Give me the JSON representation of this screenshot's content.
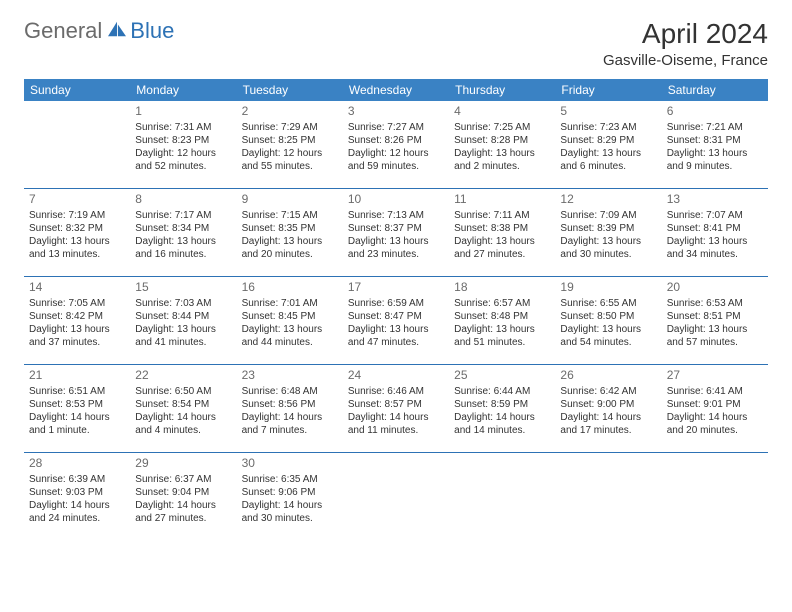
{
  "logo": {
    "general": "General",
    "blue": "Blue"
  },
  "title": "April 2024",
  "location": "Gasville-Oiseme, France",
  "colors": {
    "header_bg": "#3a82c4",
    "header_text": "#ffffff",
    "rule": "#2d72b5",
    "daynum": "#6b6b6b",
    "body_text": "#333333",
    "background": "#ffffff",
    "logo_gray": "#6b6b6b",
    "logo_blue": "#2d72b5"
  },
  "day_names": [
    "Sunday",
    "Monday",
    "Tuesday",
    "Wednesday",
    "Thursday",
    "Friday",
    "Saturday"
  ],
  "weeks": [
    [
      {},
      {
        "num": "1",
        "sunrise": "Sunrise: 7:31 AM",
        "sunset": "Sunset: 8:23 PM",
        "daylight": "Daylight: 12 hours and 52 minutes."
      },
      {
        "num": "2",
        "sunrise": "Sunrise: 7:29 AM",
        "sunset": "Sunset: 8:25 PM",
        "daylight": "Daylight: 12 hours and 55 minutes."
      },
      {
        "num": "3",
        "sunrise": "Sunrise: 7:27 AM",
        "sunset": "Sunset: 8:26 PM",
        "daylight": "Daylight: 12 hours and 59 minutes."
      },
      {
        "num": "4",
        "sunrise": "Sunrise: 7:25 AM",
        "sunset": "Sunset: 8:28 PM",
        "daylight": "Daylight: 13 hours and 2 minutes."
      },
      {
        "num": "5",
        "sunrise": "Sunrise: 7:23 AM",
        "sunset": "Sunset: 8:29 PM",
        "daylight": "Daylight: 13 hours and 6 minutes."
      },
      {
        "num": "6",
        "sunrise": "Sunrise: 7:21 AM",
        "sunset": "Sunset: 8:31 PM",
        "daylight": "Daylight: 13 hours and 9 minutes."
      }
    ],
    [
      {
        "num": "7",
        "sunrise": "Sunrise: 7:19 AM",
        "sunset": "Sunset: 8:32 PM",
        "daylight": "Daylight: 13 hours and 13 minutes."
      },
      {
        "num": "8",
        "sunrise": "Sunrise: 7:17 AM",
        "sunset": "Sunset: 8:34 PM",
        "daylight": "Daylight: 13 hours and 16 minutes."
      },
      {
        "num": "9",
        "sunrise": "Sunrise: 7:15 AM",
        "sunset": "Sunset: 8:35 PM",
        "daylight": "Daylight: 13 hours and 20 minutes."
      },
      {
        "num": "10",
        "sunrise": "Sunrise: 7:13 AM",
        "sunset": "Sunset: 8:37 PM",
        "daylight": "Daylight: 13 hours and 23 minutes."
      },
      {
        "num": "11",
        "sunrise": "Sunrise: 7:11 AM",
        "sunset": "Sunset: 8:38 PM",
        "daylight": "Daylight: 13 hours and 27 minutes."
      },
      {
        "num": "12",
        "sunrise": "Sunrise: 7:09 AM",
        "sunset": "Sunset: 8:39 PM",
        "daylight": "Daylight: 13 hours and 30 minutes."
      },
      {
        "num": "13",
        "sunrise": "Sunrise: 7:07 AM",
        "sunset": "Sunset: 8:41 PM",
        "daylight": "Daylight: 13 hours and 34 minutes."
      }
    ],
    [
      {
        "num": "14",
        "sunrise": "Sunrise: 7:05 AM",
        "sunset": "Sunset: 8:42 PM",
        "daylight": "Daylight: 13 hours and 37 minutes."
      },
      {
        "num": "15",
        "sunrise": "Sunrise: 7:03 AM",
        "sunset": "Sunset: 8:44 PM",
        "daylight": "Daylight: 13 hours and 41 minutes."
      },
      {
        "num": "16",
        "sunrise": "Sunrise: 7:01 AM",
        "sunset": "Sunset: 8:45 PM",
        "daylight": "Daylight: 13 hours and 44 minutes."
      },
      {
        "num": "17",
        "sunrise": "Sunrise: 6:59 AM",
        "sunset": "Sunset: 8:47 PM",
        "daylight": "Daylight: 13 hours and 47 minutes."
      },
      {
        "num": "18",
        "sunrise": "Sunrise: 6:57 AM",
        "sunset": "Sunset: 8:48 PM",
        "daylight": "Daylight: 13 hours and 51 minutes."
      },
      {
        "num": "19",
        "sunrise": "Sunrise: 6:55 AM",
        "sunset": "Sunset: 8:50 PM",
        "daylight": "Daylight: 13 hours and 54 minutes."
      },
      {
        "num": "20",
        "sunrise": "Sunrise: 6:53 AM",
        "sunset": "Sunset: 8:51 PM",
        "daylight": "Daylight: 13 hours and 57 minutes."
      }
    ],
    [
      {
        "num": "21",
        "sunrise": "Sunrise: 6:51 AM",
        "sunset": "Sunset: 8:53 PM",
        "daylight": "Daylight: 14 hours and 1 minute."
      },
      {
        "num": "22",
        "sunrise": "Sunrise: 6:50 AM",
        "sunset": "Sunset: 8:54 PM",
        "daylight": "Daylight: 14 hours and 4 minutes."
      },
      {
        "num": "23",
        "sunrise": "Sunrise: 6:48 AM",
        "sunset": "Sunset: 8:56 PM",
        "daylight": "Daylight: 14 hours and 7 minutes."
      },
      {
        "num": "24",
        "sunrise": "Sunrise: 6:46 AM",
        "sunset": "Sunset: 8:57 PM",
        "daylight": "Daylight: 14 hours and 11 minutes."
      },
      {
        "num": "25",
        "sunrise": "Sunrise: 6:44 AM",
        "sunset": "Sunset: 8:59 PM",
        "daylight": "Daylight: 14 hours and 14 minutes."
      },
      {
        "num": "26",
        "sunrise": "Sunrise: 6:42 AM",
        "sunset": "Sunset: 9:00 PM",
        "daylight": "Daylight: 14 hours and 17 minutes."
      },
      {
        "num": "27",
        "sunrise": "Sunrise: 6:41 AM",
        "sunset": "Sunset: 9:01 PM",
        "daylight": "Daylight: 14 hours and 20 minutes."
      }
    ],
    [
      {
        "num": "28",
        "sunrise": "Sunrise: 6:39 AM",
        "sunset": "Sunset: 9:03 PM",
        "daylight": "Daylight: 14 hours and 24 minutes."
      },
      {
        "num": "29",
        "sunrise": "Sunrise: 6:37 AM",
        "sunset": "Sunset: 9:04 PM",
        "daylight": "Daylight: 14 hours and 27 minutes."
      },
      {
        "num": "30",
        "sunrise": "Sunrise: 6:35 AM",
        "sunset": "Sunset: 9:06 PM",
        "daylight": "Daylight: 14 hours and 30 minutes."
      },
      {},
      {},
      {},
      {}
    ]
  ]
}
